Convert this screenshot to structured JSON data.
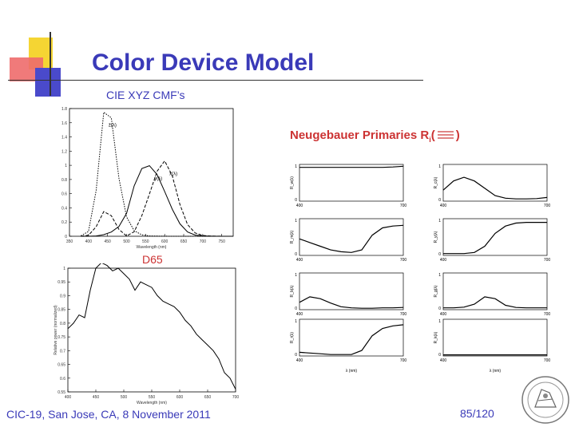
{
  "slide": {
    "title": "Color Device Model",
    "subtitle": "CIE XYZ CMF’s",
    "d65_label": "D65",
    "neugebauer_label": "Neugebauer Primaries R",
    "neugebauer_sub": "i",
    "neugebauer_paren_open": "(",
    "neugebauer_paren_close": ")",
    "footer": "CIC-19, San Jose, CA, 8 November 2011",
    "page_number": "85/120"
  },
  "colors": {
    "title": "#3a3ab8",
    "accent": "#cc3333",
    "deco_yellow": "#f5d533",
    "deco_red": "#e84a4a",
    "deco_blue": "#3a3ab8"
  },
  "chart_data": [
    {
      "type": "line",
      "title": "",
      "series": [
        {
          "name": "x̄(λ)",
          "x": [
            380,
            400,
            420,
            440,
            460,
            480,
            500,
            520,
            540,
            560,
            580,
            600,
            620,
            640,
            660,
            680,
            700,
            720,
            740,
            760,
            780
          ],
          "values": [
            0.001,
            0.014,
            0.134,
            0.348,
            0.29,
            0.096,
            0.005,
            0.063,
            0.29,
            0.595,
            0.916,
            1.062,
            0.854,
            0.448,
            0.165,
            0.047,
            0.011,
            0.003,
            0.001,
            0.0,
            0.0
          ]
        },
        {
          "name": "ȳ(λ)",
          "x": [
            380,
            400,
            420,
            440,
            460,
            480,
            500,
            520,
            540,
            560,
            580,
            600,
            620,
            640,
            660,
            680,
            700,
            720,
            740,
            760,
            780
          ],
          "values": [
            0.0,
            0.0,
            0.004,
            0.023,
            0.06,
            0.139,
            0.323,
            0.71,
            0.954,
            0.995,
            0.87,
            0.631,
            0.381,
            0.175,
            0.061,
            0.017,
            0.004,
            0.001,
            0.0,
            0.0,
            0.0
          ]
        },
        {
          "name": "z̄(λ)",
          "x": [
            380,
            400,
            420,
            440,
            460,
            480,
            500,
            520,
            540,
            560,
            580,
            600,
            620,
            640,
            660,
            680,
            700,
            720,
            740,
            760,
            780
          ],
          "values": [
            0.007,
            0.068,
            0.646,
            1.747,
            1.669,
            0.813,
            0.272,
            0.078,
            0.02,
            0.004,
            0.002,
            0.001,
            0.0,
            0.0,
            0.0,
            0.0,
            0.0,
            0.0,
            0.0,
            0.0,
            0.0
          ]
        }
      ],
      "xlabel": "Wavelength (nm)",
      "ylabel": "",
      "xticks": [
        "350",
        "400",
        "450",
        "500",
        "550",
        "600",
        "650",
        "700",
        "750"
      ],
      "yticks": [
        "0",
        "0.2",
        "0.4",
        "0.6",
        "0.8",
        "1",
        "1.2",
        "1.4",
        "1.6",
        "1.8"
      ],
      "xlim": [
        350,
        780
      ],
      "ylim": [
        0,
        1.8
      ]
    },
    {
      "type": "line",
      "title": "",
      "series": [
        {
          "name": "",
          "x": [
            400,
            410,
            420,
            430,
            440,
            450,
            460,
            470,
            480,
            490,
            500,
            510,
            520,
            530,
            540,
            550,
            560,
            570,
            580,
            590,
            600,
            610,
            620,
            630,
            640,
            650,
            660,
            670,
            680,
            690,
            700
          ],
          "values": [
            0.78,
            0.8,
            0.83,
            0.82,
            0.92,
            1.0,
            1.02,
            1.01,
            0.99,
            1.0,
            0.98,
            0.96,
            0.92,
            0.95,
            0.94,
            0.93,
            0.9,
            0.88,
            0.87,
            0.86,
            0.84,
            0.81,
            0.79,
            0.76,
            0.74,
            0.72,
            0.7,
            0.67,
            0.62,
            0.6,
            0.56
          ]
        }
      ],
      "xlabel": "Wavelength (nm)",
      "ylabel": "Relative power (normalized)",
      "xticks": [
        "400",
        "450",
        "500",
        "550",
        "600",
        "650",
        "700"
      ],
      "yticks": [
        "0.55",
        "0.6",
        "0.65",
        "0.7",
        "0.75",
        "0.8",
        "0.85",
        "0.9",
        "0.95",
        "1"
      ],
      "xlim": [
        400,
        700
      ],
      "ylim": [
        0.55,
        1.0
      ]
    }
  ],
  "neugebauer_panels": [
    {
      "label": "R_w(λ)",
      "values": [
        0.92,
        0.92,
        0.92,
        0.92,
        0.92,
        0.92,
        0.92,
        0.92,
        0.92,
        0.93,
        0.95
      ]
    },
    {
      "label": "R_c(λ)",
      "values": [
        0.3,
        0.55,
        0.65,
        0.55,
        0.35,
        0.15,
        0.08,
        0.06,
        0.06,
        0.07,
        0.1
      ]
    },
    {
      "label": "R_m(λ)",
      "values": [
        0.45,
        0.35,
        0.25,
        0.15,
        0.1,
        0.08,
        0.15,
        0.55,
        0.75,
        0.8,
        0.82
      ]
    },
    {
      "label": "R_y(λ)",
      "values": [
        0.05,
        0.05,
        0.05,
        0.08,
        0.25,
        0.6,
        0.8,
        0.88,
        0.9,
        0.9,
        0.9
      ]
    },
    {
      "label": "R_b(λ)",
      "values": [
        0.2,
        0.35,
        0.3,
        0.18,
        0.08,
        0.05,
        0.04,
        0.04,
        0.05,
        0.05,
        0.06
      ]
    },
    {
      "label": "R_g(λ)",
      "values": [
        0.05,
        0.05,
        0.07,
        0.15,
        0.35,
        0.3,
        0.12,
        0.06,
        0.05,
        0.05,
        0.05
      ]
    },
    {
      "label": "R_r(λ)",
      "values": [
        0.1,
        0.08,
        0.06,
        0.04,
        0.04,
        0.04,
        0.15,
        0.55,
        0.75,
        0.82,
        0.85
      ]
    },
    {
      "label": "R_k(λ)",
      "values": [
        0.03,
        0.03,
        0.03,
        0.03,
        0.03,
        0.03,
        0.03,
        0.03,
        0.03,
        0.03,
        0.03
      ]
    }
  ],
  "neugebauer_axes": {
    "xmin": "400",
    "xmax": "700",
    "ymin": "0",
    "ymax": "1",
    "xlabel": "λ (nm)"
  }
}
